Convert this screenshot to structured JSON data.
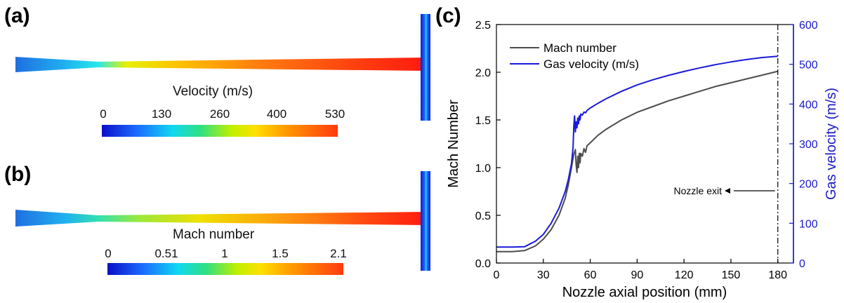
{
  "panels": {
    "a": "(a)",
    "b": "(b)",
    "c": "(c)"
  },
  "velocity_contour": {
    "title": "Velocity (m/s)",
    "ticks": [
      "0",
      "130",
      "260",
      "400",
      "530"
    ]
  },
  "mach_contour": {
    "title": "Mach number",
    "ticks": [
      "0",
      "0.51",
      "1",
      "1.5",
      "2.1"
    ]
  },
  "colors": {
    "mach_line": "#4d4d4d",
    "velocity_line": "#1a1adb",
    "right_axis": "#1a1acc"
  },
  "chart_data": {
    "type": "line",
    "xlabel": "Nozzle axial position (mm)",
    "ylabel": "Mach Number",
    "ylabel_right": "Gas velocity (m/s)",
    "xlim": [
      0,
      190
    ],
    "ylim": [
      0,
      2.5
    ],
    "ylim_right": [
      0,
      600
    ],
    "xticks": [
      0,
      30,
      60,
      90,
      120,
      150,
      180
    ],
    "yticks": [
      0.0,
      0.5,
      1.0,
      1.5,
      2.0,
      2.5
    ],
    "yticks_right": [
      0,
      100,
      200,
      300,
      400,
      500,
      600
    ],
    "legend_position": "top-left",
    "annotation": {
      "text": "Nozzle exit",
      "x": 180
    },
    "series": [
      {
        "name": "Mach number",
        "axis": "left",
        "x": [
          0,
          10,
          18,
          25,
          30,
          35,
          40,
          44,
          46,
          48,
          49.5,
          50.5,
          51,
          51.5,
          52,
          52.5,
          53,
          53.5,
          54,
          55,
          56,
          57,
          58,
          60,
          65,
          70,
          80,
          90,
          100,
          110,
          120,
          130,
          140,
          150,
          160,
          170,
          180
        ],
        "y": [
          0.12,
          0.12,
          0.13,
          0.18,
          0.25,
          0.35,
          0.5,
          0.68,
          0.82,
          1.0,
          1.14,
          1.19,
          1.03,
          0.95,
          1.12,
          1.0,
          1.15,
          1.05,
          1.15,
          1.12,
          1.2,
          1.16,
          1.23,
          1.26,
          1.34,
          1.4,
          1.5,
          1.58,
          1.64,
          1.7,
          1.75,
          1.8,
          1.85,
          1.89,
          1.93,
          1.97,
          2.01
        ]
      },
      {
        "name": "Gas velocity (m/s)",
        "axis": "right",
        "x": [
          0,
          10,
          18,
          25,
          30,
          35,
          40,
          44,
          46,
          48,
          49,
          49.5,
          50,
          50.5,
          51,
          51.5,
          52,
          52.5,
          53,
          53.5,
          54,
          55,
          56,
          57,
          58,
          60,
          65,
          70,
          80,
          90,
          100,
          110,
          120,
          130,
          140,
          150,
          160,
          170,
          180
        ],
        "y": [
          40,
          40,
          41,
          55,
          72,
          100,
          138,
          180,
          210,
          250,
          290,
          345,
          370,
          330,
          355,
          340,
          365,
          350,
          370,
          360,
          375,
          372,
          380,
          378,
          384,
          390,
          402,
          413,
          432,
          448,
          461,
          472,
          482,
          491,
          499,
          506,
          512,
          517,
          520
        ]
      }
    ]
  }
}
